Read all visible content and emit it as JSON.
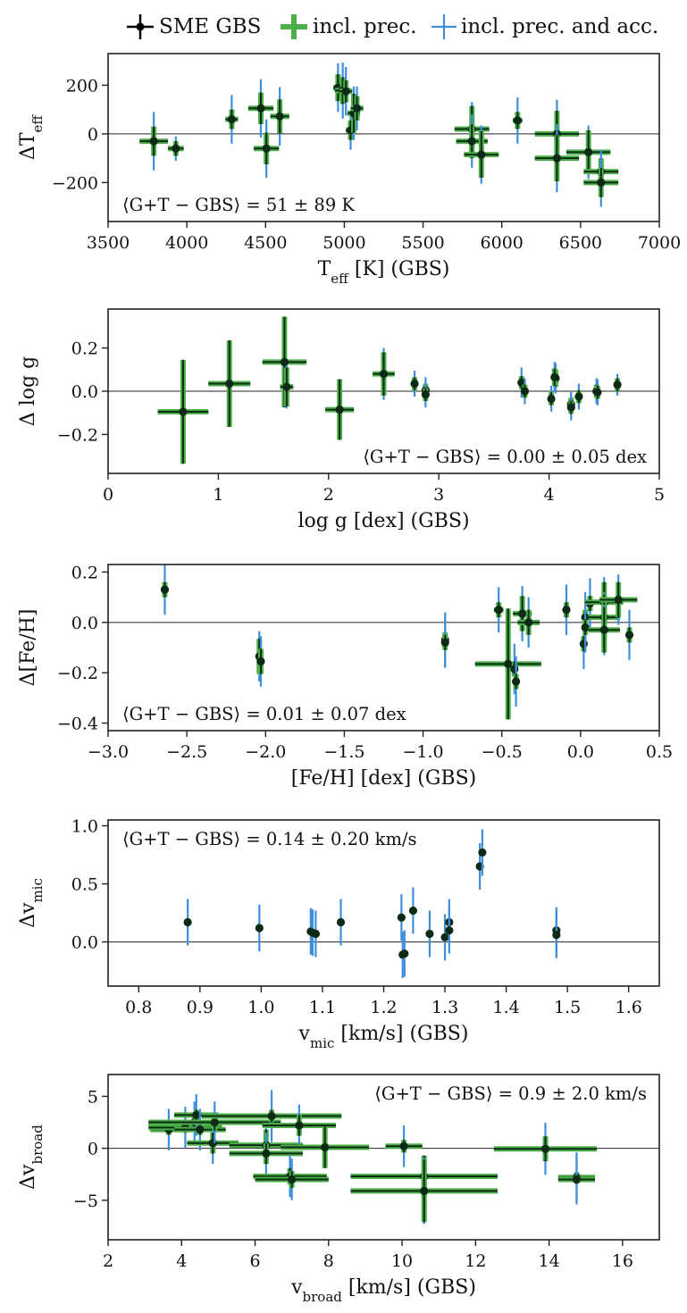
{
  "legend": {
    "items": [
      {
        "label": "SME GBS",
        "color": "#000000"
      },
      {
        "label": "incl. prec.",
        "color": "#4daf4a"
      },
      {
        "label": "incl. prec. and acc.",
        "color": "#3d8fdc"
      }
    ]
  },
  "chart_data": [
    {
      "type": "scatter",
      "xlabel": "T_eff [K] (GBS)",
      "ylabel": "ΔT_eff",
      "xlim": [
        3500,
        7000
      ],
      "ylim": [
        -360,
        330
      ],
      "xticks": [
        3500,
        4000,
        4500,
        5000,
        5500,
        6000,
        6500,
        7000
      ],
      "yticks": [
        -200,
        0,
        200
      ],
      "xtick_labels": [
        "3500",
        "4000",
        "4500",
        "5000",
        "5500",
        "6000",
        "6500",
        "7000"
      ],
      "ytick_labels": [
        "−200",
        "0",
        "200"
      ],
      "annotation": "⟨G+T − GBS⟩ = 51 ± 89 K",
      "annotation_pos": "bottom-left",
      "points": [
        {
          "x": 3790,
          "y": -30,
          "xerr": 90,
          "yerr": 60,
          "yacc": 120
        },
        {
          "x": 3930,
          "y": -60,
          "xerr": 50,
          "yerr": 30,
          "yacc": 50
        },
        {
          "x": 4285,
          "y": 60,
          "xerr": 40,
          "yerr": 40,
          "yacc": 100
        },
        {
          "x": 4470,
          "y": 105,
          "xerr": 80,
          "yerr": 65,
          "yacc": 120
        },
        {
          "x": 4505,
          "y": -60,
          "xerr": 80,
          "yerr": 65,
          "yacc": 120
        },
        {
          "x": 4590,
          "y": 72,
          "xerr": 60,
          "yerr": 70,
          "yacc": 120
        },
        {
          "x": 4960,
          "y": 190,
          "xerr": 30,
          "yerr": 55,
          "yacc": 100
        },
        {
          "x": 4990,
          "y": 178,
          "xerr": 50,
          "yerr": 55,
          "yacc": 115
        },
        {
          "x": 5010,
          "y": 175,
          "xerr": 40,
          "yerr": 45,
          "yacc": 100
        },
        {
          "x": 5040,
          "y": 15,
          "xerr": 30,
          "yerr": 40,
          "yacc": 80
        },
        {
          "x": 5060,
          "y": 85,
          "xerr": 40,
          "yerr": 80,
          "yacc": 110
        },
        {
          "x": 5080,
          "y": 105,
          "xerr": 40,
          "yerr": 50,
          "yacc": 90
        },
        {
          "x": 5810,
          "y": 20,
          "xerr": 110,
          "yerr": 95,
          "yacc": 110
        },
        {
          "x": 5810,
          "y": -30,
          "xerr": 100,
          "yerr": 70,
          "yacc": 110
        },
        {
          "x": 5870,
          "y": -85,
          "xerr": 110,
          "yerr": 95,
          "yacc": 120
        },
        {
          "x": 6100,
          "y": 55,
          "xerr": 30,
          "yerr": 35,
          "yacc": 95
        },
        {
          "x": 6350,
          "y": 0,
          "xerr": 140,
          "yerr": 95,
          "yacc": 140
        },
        {
          "x": 6350,
          "y": -100,
          "xerr": 140,
          "yerr": 95,
          "yacc": 140
        },
        {
          "x": 6550,
          "y": -75,
          "xerr": 140,
          "yerr": 90,
          "yacc": 110
        },
        {
          "x": 6630,
          "y": -155,
          "xerr": 110,
          "yerr": 55,
          "yacc": 90
        },
        {
          "x": 6630,
          "y": -200,
          "xerr": 110,
          "yerr": 60,
          "yacc": 100
        }
      ]
    },
    {
      "type": "scatter",
      "xlabel": "log g [dex] (GBS)",
      "ylabel": "Δ log g",
      "xlim": [
        0,
        5
      ],
      "ylim": [
        -0.38,
        0.38
      ],
      "xticks": [
        0,
        1,
        2,
        3,
        4,
        5
      ],
      "yticks": [
        -0.2,
        0.0,
        0.2
      ],
      "xtick_labels": [
        "0",
        "1",
        "2",
        "3",
        "4",
        "5"
      ],
      "ytick_labels": [
        "−0.2",
        "0.0",
        "0.2"
      ],
      "annotation": "⟨G+T − GBS⟩ = 0.00 ± 0.05 dex",
      "annotation_pos": "bottom-right",
      "points": [
        {
          "x": 0.68,
          "y": -0.095,
          "xerr": 0.23,
          "yerr": 0.24,
          "yacc": 0.24
        },
        {
          "x": 1.1,
          "y": 0.035,
          "xerr": 0.19,
          "yerr": 0.2,
          "yacc": 0.2
        },
        {
          "x": 1.6,
          "y": 0.135,
          "xerr": 0.2,
          "yerr": 0.21,
          "yacc": 0.21
        },
        {
          "x": 1.62,
          "y": 0.02,
          "xerr": 0.06,
          "yerr": 0.09,
          "yacc": 0.1
        },
        {
          "x": 2.1,
          "y": -0.085,
          "xerr": 0.13,
          "yerr": 0.14,
          "yacc": 0.14
        },
        {
          "x": 2.5,
          "y": 0.08,
          "xerr": 0.1,
          "yerr": 0.1,
          "yacc": 0.12
        },
        {
          "x": 2.78,
          "y": 0.035,
          "xerr": 0.02,
          "yerr": 0.03,
          "yacc": 0.06
        },
        {
          "x": 2.88,
          "y": 0.005,
          "xerr": 0.02,
          "yerr": 0.03,
          "yacc": 0.06
        },
        {
          "x": 2.88,
          "y": -0.015,
          "xerr": 0.02,
          "yerr": 0.03,
          "yacc": 0.06
        },
        {
          "x": 3.75,
          "y": 0.04,
          "xerr": 0.02,
          "yerr": 0.03,
          "yacc": 0.07
        },
        {
          "x": 3.78,
          "y": 0.0,
          "xerr": 0.02,
          "yerr": 0.03,
          "yacc": 0.06
        },
        {
          "x": 4.02,
          "y": -0.035,
          "xerr": 0.02,
          "yerr": 0.03,
          "yacc": 0.06
        },
        {
          "x": 4.06,
          "y": 0.06,
          "xerr": 0.03,
          "yerr": 0.04,
          "yacc": 0.07
        },
        {
          "x": 4.05,
          "y": 0.065,
          "xerr": 0.03,
          "yerr": 0.04,
          "yacc": 0.07
        },
        {
          "x": 4.2,
          "y": -0.06,
          "xerr": 0.02,
          "yerr": 0.03,
          "yacc": 0.06
        },
        {
          "x": 4.2,
          "y": -0.075,
          "xerr": 0.02,
          "yerr": 0.03,
          "yacc": 0.06
        },
        {
          "x": 4.27,
          "y": -0.025,
          "xerr": 0.02,
          "yerr": 0.03,
          "yacc": 0.06
        },
        {
          "x": 4.43,
          "y": 0.0,
          "xerr": 0.02,
          "yerr": 0.03,
          "yacc": 0.06
        },
        {
          "x": 4.44,
          "y": -0.005,
          "xerr": 0.02,
          "yerr": 0.03,
          "yacc": 0.06
        },
        {
          "x": 4.62,
          "y": 0.03,
          "xerr": 0.02,
          "yerr": 0.03,
          "yacc": 0.05
        }
      ]
    },
    {
      "type": "scatter",
      "xlabel": "[Fe/H] [dex] (GBS)",
      "ylabel": "Δ[Fe/H]",
      "xlim": [
        -3.0,
        0.5
      ],
      "ylim": [
        -0.43,
        0.23
      ],
      "xticks": [
        -3.0,
        -2.5,
        -2.0,
        -1.5,
        -1.0,
        -0.5,
        0.0,
        0.5
      ],
      "yticks": [
        -0.4,
        -0.2,
        0.0,
        0.2
      ],
      "xtick_labels": [
        "−3.0",
        "−2.5",
        "−2.0",
        "−1.5",
        "−1.0",
        "−0.5",
        "0.0",
        "0.5"
      ],
      "ytick_labels": [
        "−0.4",
        "−0.2",
        "0.0",
        "0.2"
      ],
      "annotation": "⟨G+T − GBS⟩ = 0.01 ± 0.07 dex",
      "annotation_pos": "bottom-left",
      "points": [
        {
          "x": -2.64,
          "y": 0.13,
          "xerr": 0.01,
          "yerr": 0.03,
          "yacc": 0.1
        },
        {
          "x": -2.04,
          "y": -0.135,
          "xerr": 0.02,
          "yerr": 0.07,
          "yacc": 0.1
        },
        {
          "x": -2.03,
          "y": -0.155,
          "xerr": 0.02,
          "yerr": 0.05,
          "yacc": 0.1
        },
        {
          "x": -0.86,
          "y": -0.07,
          "xerr": 0.01,
          "yerr": 0.03,
          "yacc": 0.11
        },
        {
          "x": -0.86,
          "y": -0.08,
          "xerr": 0.01,
          "yerr": 0.03,
          "yacc": 0.1
        },
        {
          "x": -0.52,
          "y": 0.05,
          "xerr": 0.03,
          "yerr": 0.03,
          "yacc": 0.09
        },
        {
          "x": -0.46,
          "y": -0.165,
          "xerr": 0.21,
          "yerr": 0.22,
          "yacc": 0.22
        },
        {
          "x": -0.42,
          "y": -0.185,
          "xerr": 0.02,
          "yerr": 0.03,
          "yacc": 0.1
        },
        {
          "x": -0.41,
          "y": -0.235,
          "xerr": 0.02,
          "yerr": 0.03,
          "yacc": 0.1
        },
        {
          "x": -0.37,
          "y": 0.035,
          "xerr": 0.06,
          "yerr": 0.07,
          "yacc": 0.11
        },
        {
          "x": -0.33,
          "y": 0.0,
          "xerr": 0.07,
          "yerr": 0.05,
          "yacc": 0.1
        },
        {
          "x": -0.09,
          "y": 0.05,
          "xerr": 0.02,
          "yerr": 0.03,
          "yacc": 0.1
        },
        {
          "x": 0.02,
          "y": -0.085,
          "xerr": 0.02,
          "yerr": 0.03,
          "yacc": 0.1
        },
        {
          "x": 0.03,
          "y": 0.02,
          "xerr": 0.02,
          "yerr": 0.03,
          "yacc": 0.1
        },
        {
          "x": 0.03,
          "y": -0.02,
          "xerr": 0.02,
          "yerr": 0.03,
          "yacc": 0.1
        },
        {
          "x": 0.06,
          "y": 0.075,
          "xerr": 0.02,
          "yerr": 0.03,
          "yacc": 0.1
        },
        {
          "x": 0.15,
          "y": 0.08,
          "xerr": 0.12,
          "yerr": 0.08,
          "yacc": 0.1
        },
        {
          "x": 0.15,
          "y": 0.02,
          "xerr": 0.1,
          "yerr": 0.09,
          "yacc": 0.1
        },
        {
          "x": 0.15,
          "y": -0.03,
          "xerr": 0.1,
          "yerr": 0.09,
          "yacc": 0.1
        },
        {
          "x": 0.24,
          "y": 0.09,
          "xerr": 0.12,
          "yerr": 0.07,
          "yacc": 0.1
        },
        {
          "x": 0.31,
          "y": -0.05,
          "xerr": 0.01,
          "yerr": 0.03,
          "yacc": 0.1
        }
      ]
    },
    {
      "type": "scatter",
      "xlabel": "v_mic [km/s] (GBS)",
      "ylabel": "Δv_mic",
      "xlim": [
        0.75,
        1.65
      ],
      "ylim": [
        -0.38,
        1.05
      ],
      "xticks": [
        0.8,
        0.9,
        1.0,
        1.1,
        1.2,
        1.3,
        1.4,
        1.5,
        1.6
      ],
      "yticks": [
        0.0,
        0.5,
        1.0
      ],
      "xtick_labels": [
        "0.8",
        "0.9",
        "1.0",
        "1.1",
        "1.2",
        "1.3",
        "1.4",
        "1.5",
        "1.6"
      ],
      "ytick_labels": [
        "0.0",
        "0.5",
        "1.0"
      ],
      "annotation": "⟨G+T − GBS⟩ = 0.14 ± 0.20 km/s",
      "annotation_pos": "top-left",
      "points": [
        {
          "x": 0.88,
          "y": 0.17,
          "xerr": 0,
          "yerr": 0,
          "yacc": 0.2
        },
        {
          "x": 0.997,
          "y": 0.12,
          "xerr": 0,
          "yerr": 0,
          "yacc": 0.2
        },
        {
          "x": 1.081,
          "y": 0.09,
          "xerr": 0,
          "yerr": 0,
          "yacc": 0.2
        },
        {
          "x": 1.084,
          "y": 0.08,
          "xerr": 0,
          "yerr": 0,
          "yacc": 0.2
        },
        {
          "x": 1.089,
          "y": 0.07,
          "xerr": 0,
          "yerr": 0,
          "yacc": 0.2
        },
        {
          "x": 1.13,
          "y": 0.17,
          "xerr": 0,
          "yerr": 0,
          "yacc": 0.2
        },
        {
          "x": 1.229,
          "y": 0.21,
          "xerr": 0,
          "yerr": 0,
          "yacc": 0.2
        },
        {
          "x": 1.231,
          "y": -0.11,
          "xerr": 0,
          "yerr": 0,
          "yacc": 0.2
        },
        {
          "x": 1.234,
          "y": -0.1,
          "xerr": 0,
          "yerr": 0,
          "yacc": 0.2
        },
        {
          "x": 1.248,
          "y": 0.27,
          "xerr": 0,
          "yerr": 0,
          "yacc": 0.2
        },
        {
          "x": 1.275,
          "y": 0.07,
          "xerr": 0,
          "yerr": 0,
          "yacc": 0.2
        },
        {
          "x": 1.3,
          "y": 0.04,
          "xerr": 0,
          "yerr": 0,
          "yacc": 0.2
        },
        {
          "x": 1.307,
          "y": 0.17,
          "xerr": 0,
          "yerr": 0,
          "yacc": 0.2
        },
        {
          "x": 1.307,
          "y": 0.1,
          "xerr": 0,
          "yerr": 0,
          "yacc": 0.2
        },
        {
          "x": 1.357,
          "y": 0.65,
          "xerr": 0,
          "yerr": 0,
          "yacc": 0.2
        },
        {
          "x": 1.361,
          "y": 0.77,
          "xerr": 0,
          "yerr": 0,
          "yacc": 0.2
        },
        {
          "x": 1.482,
          "y": 0.1,
          "xerr": 0,
          "yerr": 0,
          "yacc": 0.2
        },
        {
          "x": 1.482,
          "y": 0.06,
          "xerr": 0,
          "yerr": 0,
          "yacc": 0.2
        }
      ]
    },
    {
      "type": "scatter",
      "xlabel": "v_broad [km/s] (GBS)",
      "ylabel": "Δv_broad",
      "xlim": [
        2,
        17
      ],
      "ylim": [
        -8.8,
        7.1
      ],
      "xticks": [
        2,
        4,
        6,
        8,
        10,
        12,
        14,
        16
      ],
      "yticks": [
        -5,
        0,
        5
      ],
      "xtick_labels": [
        "2",
        "4",
        "6",
        "8",
        "10",
        "12",
        "14",
        "16"
      ],
      "ytick_labels": [
        "−5",
        "0",
        "5"
      ],
      "annotation": "⟨G+T − GBS⟩ = 0.9 ± 2.0 km/s",
      "annotation_pos": "top-right",
      "points": [
        {
          "x": 3.65,
          "y": 1.8,
          "xerr": 0.5,
          "yerr": 0.5,
          "yacc": 2.0
        },
        {
          "x": 4.1,
          "y": 2.0,
          "xerr": 1.0,
          "yerr": 0.5,
          "yacc": 2.0
        },
        {
          "x": 4.35,
          "y": 2.5,
          "xerr": 0.6,
          "yerr": 0.5,
          "yacc": 2.0
        },
        {
          "x": 4.4,
          "y": 3.2,
          "xerr": 0.6,
          "yerr": 0.5,
          "yacc": 2.0
        },
        {
          "x": 4.5,
          "y": 1.8,
          "xerr": 0.7,
          "yerr": 0.5,
          "yacc": 2.0
        },
        {
          "x": 4.85,
          "y": 0.5,
          "xerr": 0.7,
          "yerr": 1.0,
          "yacc": 2.0
        },
        {
          "x": 4.9,
          "y": 2.5,
          "xerr": 1.8,
          "yerr": 0.8,
          "yacc": 2.0
        },
        {
          "x": 6.3,
          "y": 0.3,
          "xerr": 1.0,
          "yerr": 1.5,
          "yacc": 2.0
        },
        {
          "x": 6.3,
          "y": -0.5,
          "xerr": 1.0,
          "yerr": 1.0,
          "yacc": 2.0
        },
        {
          "x": 6.45,
          "y": 3.1,
          "xerr": 1.9,
          "yerr": 0.6,
          "yacc": 2.5
        },
        {
          "x": 6.95,
          "y": -2.7,
          "xerr": 1.0,
          "yerr": 0.8,
          "yacc": 2.0
        },
        {
          "x": 7.0,
          "y": -3.0,
          "xerr": 1.0,
          "yerr": 0.8,
          "yacc": 2.0
        },
        {
          "x": 7.2,
          "y": 2.2,
          "xerr": 1.0,
          "yerr": 1.0,
          "yacc": 2.0
        },
        {
          "x": 7.9,
          "y": 0.1,
          "xerr": 1.2,
          "yerr": 2.0,
          "yacc": 2.0
        },
        {
          "x": 10.05,
          "y": 0.2,
          "xerr": 0.5,
          "yerr": 0.6,
          "yacc": 2.0
        },
        {
          "x": 10.6,
          "y": -2.7,
          "xerr": 2.0,
          "yerr": 2.0,
          "yacc": 2.0
        },
        {
          "x": 10.6,
          "y": -4.1,
          "xerr": 2.0,
          "yerr": 3.0,
          "yacc": 3.2
        },
        {
          "x": 13.9,
          "y": -0.05,
          "xerr": 1.4,
          "yerr": 1.2,
          "yacc": 2.5
        },
        {
          "x": 14.75,
          "y": -2.8,
          "xerr": 0.5,
          "yerr": 0.5,
          "yacc": 2.4
        },
        {
          "x": 14.75,
          "y": -3.0,
          "xerr": 0.5,
          "yerr": 0.4,
          "yacc": 2.4
        }
      ]
    }
  ]
}
